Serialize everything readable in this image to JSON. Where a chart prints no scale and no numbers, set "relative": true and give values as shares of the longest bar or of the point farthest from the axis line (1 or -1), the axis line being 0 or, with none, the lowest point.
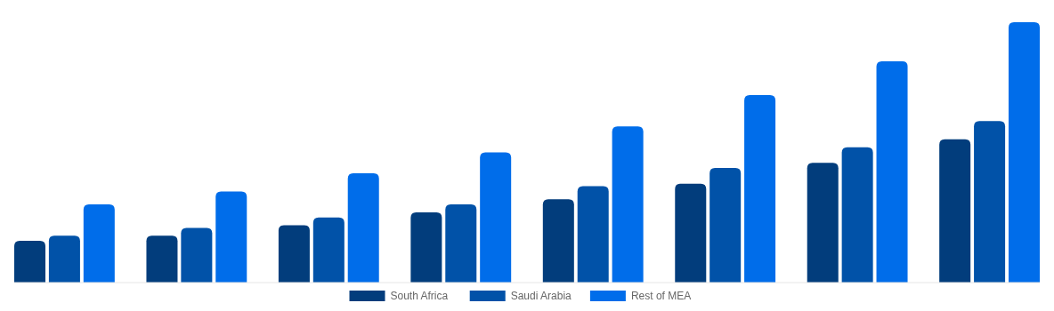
{
  "chart_data": {
    "type": "bar",
    "relative": true,
    "categories": [
      null,
      null,
      null,
      null,
      null,
      null,
      null,
      null
    ],
    "legend": "bottom",
    "series": [
      {
        "name": "South Africa",
        "color": "#023d7c",
        "values": [
          0.16,
          0.18,
          0.22,
          0.27,
          0.32,
          0.38,
          0.46,
          0.55
        ]
      },
      {
        "name": "Saudi Arabia",
        "color": "#0152a8",
        "values": [
          0.18,
          0.21,
          0.25,
          0.3,
          0.37,
          0.44,
          0.52,
          0.62
        ]
      },
      {
        "name": "Rest of MEA",
        "color": "#006dea",
        "values": [
          0.3,
          0.35,
          0.42,
          0.5,
          0.6,
          0.72,
          0.85,
          1
        ]
      }
    ]
  }
}
